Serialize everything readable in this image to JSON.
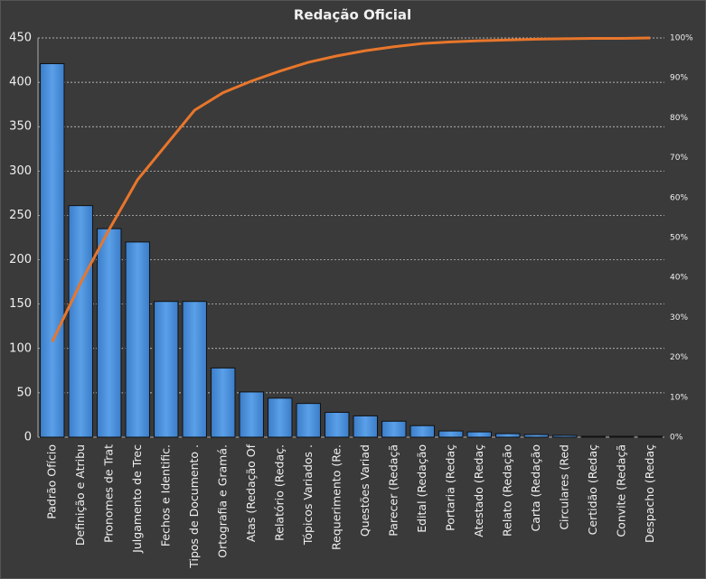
{
  "chart_data": {
    "type": "pareto",
    "title": "Redação Oficial",
    "categories": [
      "Padrão Ofício",
      "Definição e Atribu",
      "Pronomes de Trat",
      "Julgamento de Trec",
      "Fechos e Identific.",
      "Tipos de Documento .",
      "Ortografia e Gramá.",
      "Atas (Redação Of",
      "Relatório (Redaç.",
      "Tópicos Variados .",
      "Requerimento (Re.",
      "Questões Variad",
      "Parecer (Redaçã",
      "Edital (Redação",
      "Portaria (Redaç",
      "Atestado (Redaç",
      "Relato (Redação",
      "Carta (Redação",
      "Circulares (Red",
      "Certidão (Redaç",
      "Convite (Redaçã",
      "Despacho (Redaç"
    ],
    "series": [
      {
        "type": "bar",
        "color": "#4a8fd8",
        "values": [
          421,
          261,
          235,
          220,
          153,
          153,
          78,
          51,
          44,
          38,
          28,
          24,
          18,
          13,
          7,
          6,
          4,
          3,
          2,
          1,
          1,
          1
        ]
      },
      {
        "type": "line",
        "axis": "y2",
        "color": "#e8762b",
        "values": [
          23.9,
          38.7,
          52.0,
          64.5,
          73.2,
          81.9,
          86.3,
          89.2,
          91.7,
          93.9,
          95.5,
          96.8,
          97.8,
          98.6,
          99.0,
          99.3,
          99.5,
          99.7,
          99.8,
          99.9,
          99.9,
          100
        ]
      }
    ],
    "ylim": [
      0,
      450
    ],
    "yticks": [
      0,
      50,
      100,
      150,
      200,
      250,
      300,
      350,
      400,
      450
    ],
    "y2lim": [
      0,
      100
    ],
    "y2ticks": [
      {
        "value": 0,
        "label": "0%"
      },
      {
        "value": 10,
        "label": "10%"
      },
      {
        "value": 20,
        "label": "20%"
      },
      {
        "value": 30,
        "label": "30%"
      },
      {
        "value": 40,
        "label": "40%"
      },
      {
        "value": 50,
        "label": "50%"
      },
      {
        "value": 60,
        "label": "60%"
      },
      {
        "value": 70,
        "label": "70%"
      },
      {
        "value": 80,
        "label": "80%"
      },
      {
        "value": 90,
        "label": "90%"
      },
      {
        "value": 100,
        "label": "100%"
      }
    ],
    "grid": true
  }
}
